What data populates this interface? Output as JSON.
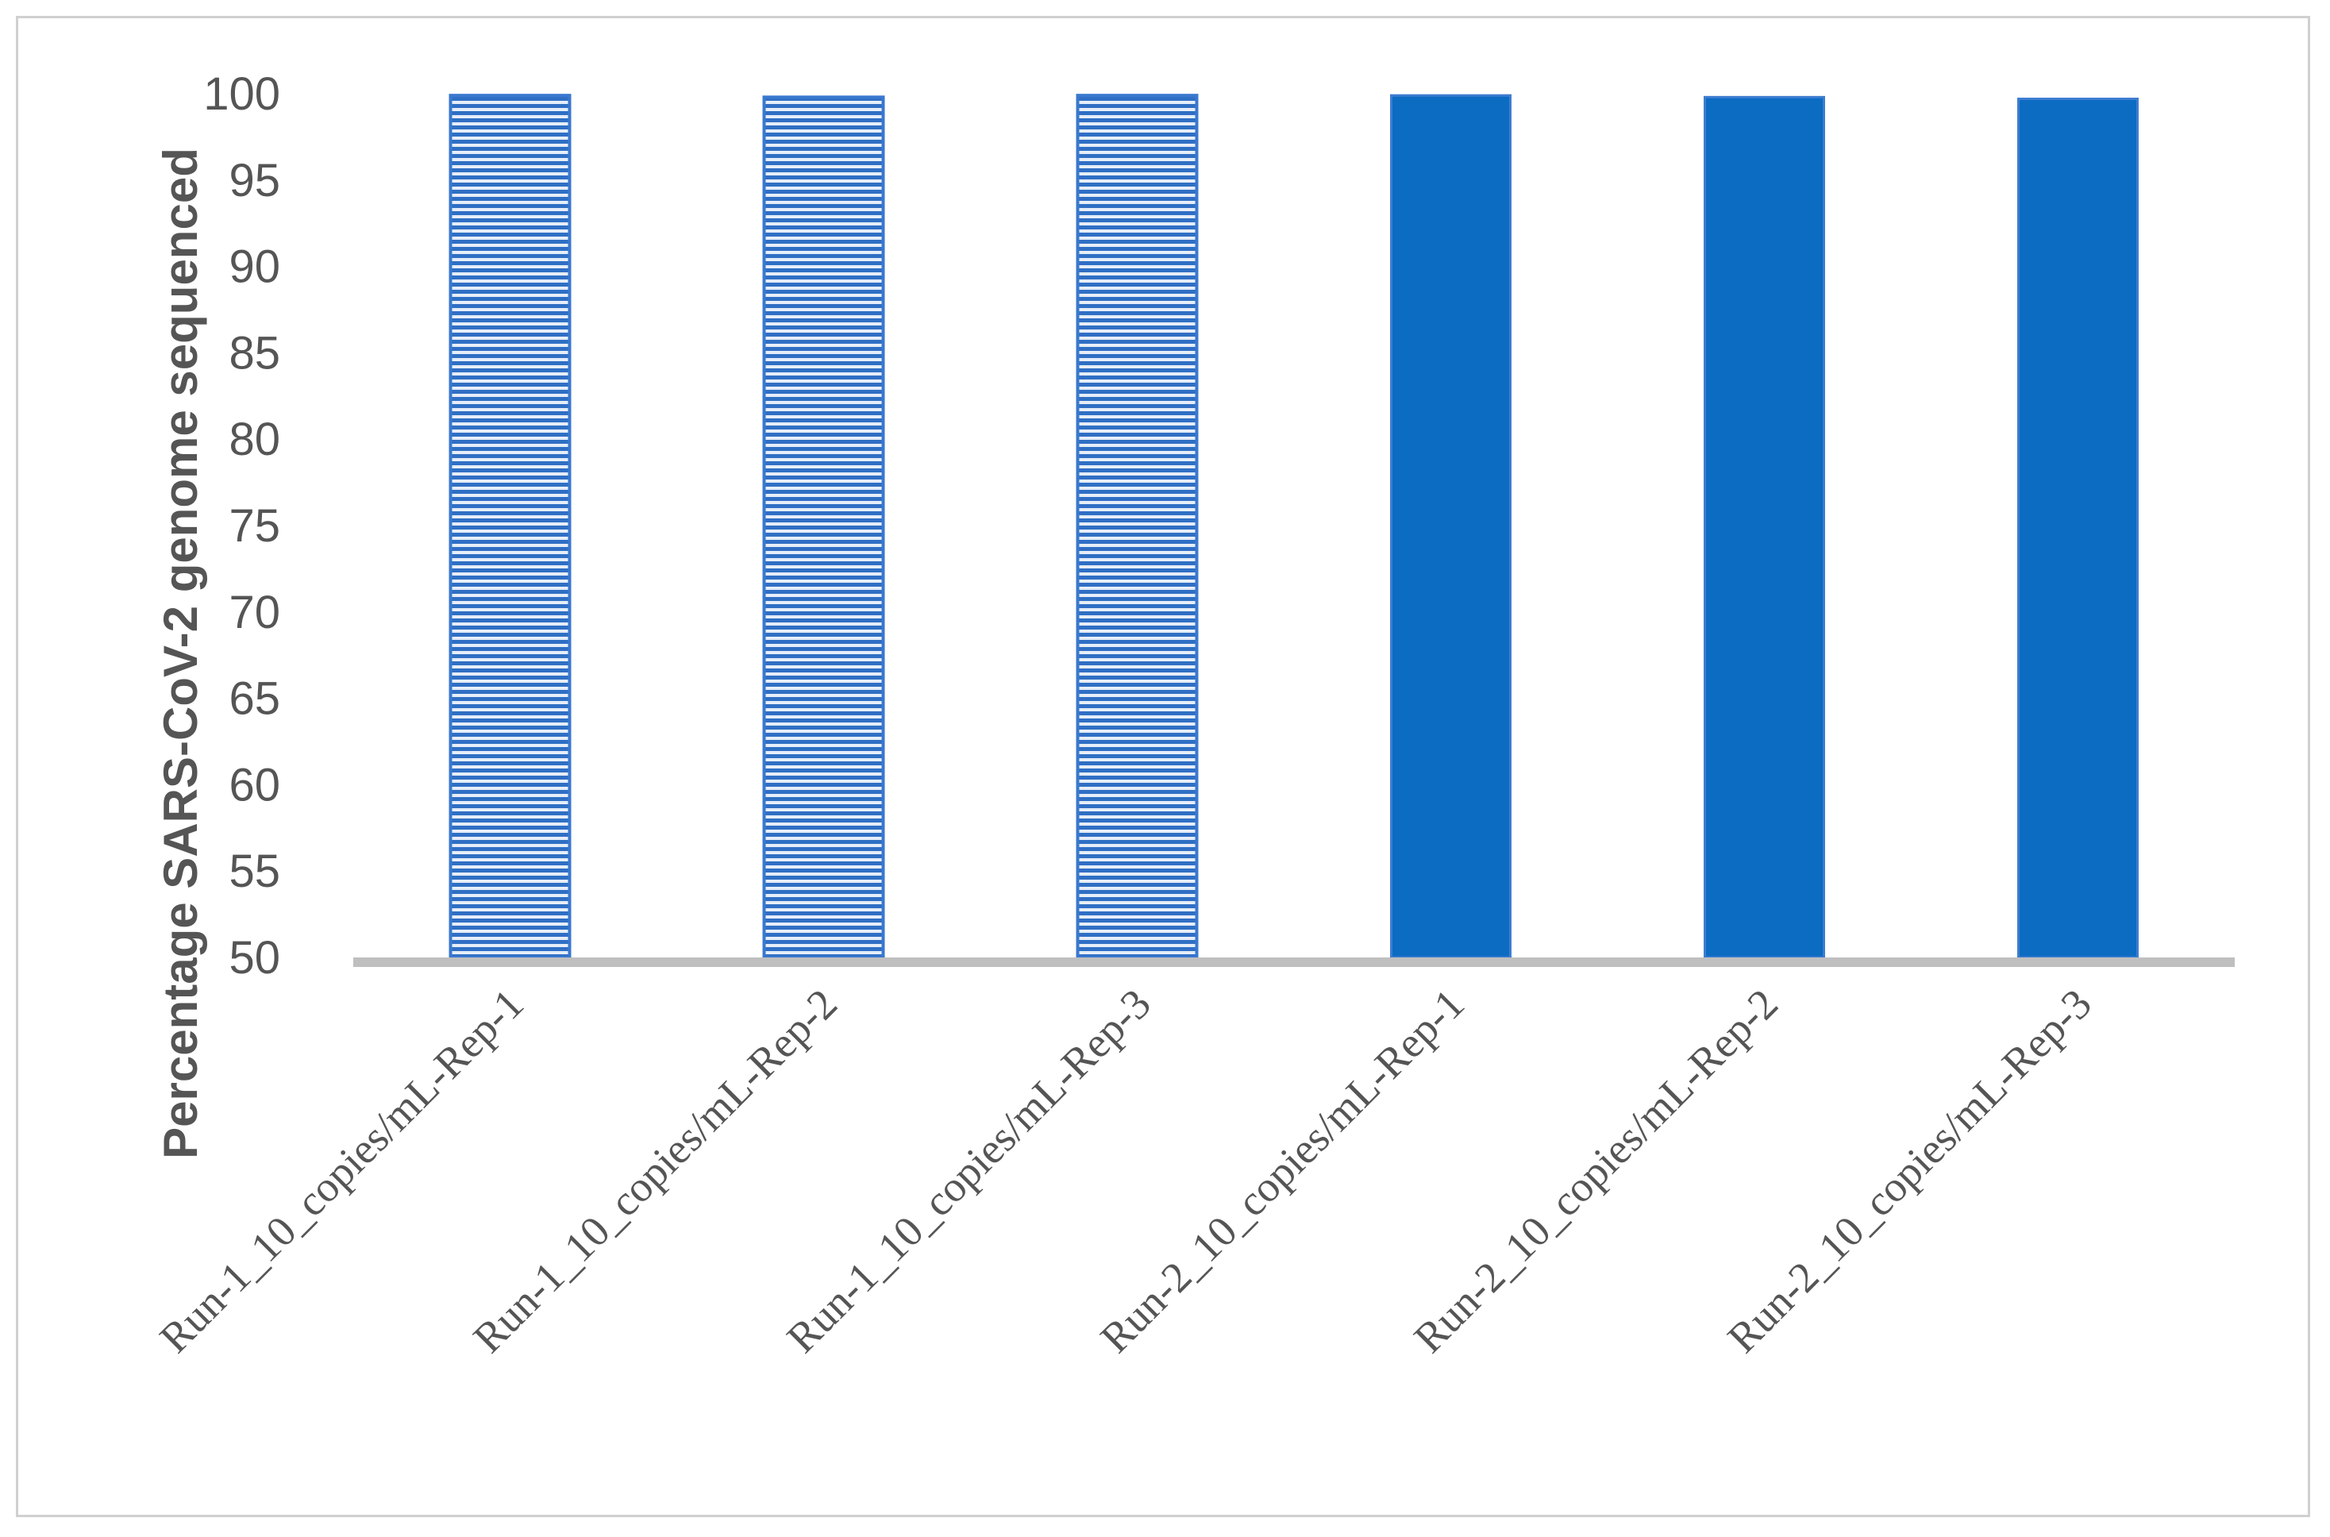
{
  "chart_data": {
    "type": "bar",
    "ylabel": "Percentage SARS-CoV-2 genome sequenced",
    "xlabel": "",
    "ylim": [
      50,
      100
    ],
    "yticks": [
      "50",
      "55",
      "60",
      "65",
      "70",
      "75",
      "80",
      "85",
      "90",
      "95",
      "100"
    ],
    "grid": false,
    "legend": "none",
    "categories": [
      "Run-1_10_copies/mL-Rep-1",
      "Run-1_10_copies/mL-Rep-2",
      "Run-1_10_copies/mL-Rep-3",
      "Run-2_10_copies/mL-Rep-1",
      "Run-2_10_copies/mL-Rep-2",
      "Run-2_10_copies/mL-Rep-3"
    ],
    "values": [
      99.9,
      99.8,
      99.9,
      99.9,
      99.8,
      99.7
    ],
    "bar_styles": [
      "striped",
      "striped",
      "striped",
      "solid",
      "solid",
      "solid"
    ],
    "colors": {
      "bar": "#0b6cc2",
      "stripe_light": "#e6eef9",
      "axis": "#bfbfbf",
      "text": "#555555"
    }
  }
}
